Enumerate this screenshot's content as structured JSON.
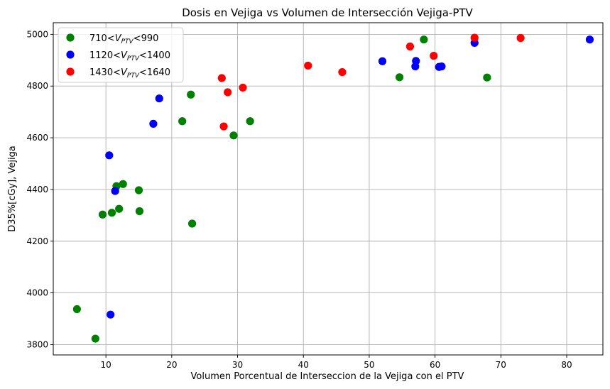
{
  "chart_data": {
    "type": "scatter",
    "title": "Dosis en Vejiga vs Volumen de Intersección Vejiga-PTV",
    "xlabel": "Volumen Porcentual de Interseccion de la Vejiga con el PTV",
    "ylabel": "D35%[cGy], Vejiga",
    "xlim": [
      2,
      85.5
    ],
    "ylim": [
      3760,
      5045
    ],
    "xticks": [
      10,
      20,
      30,
      40,
      50,
      60,
      70,
      80
    ],
    "yticks": [
      3800,
      4000,
      4200,
      4400,
      4600,
      4800,
      5000
    ],
    "grid": true,
    "legend_position": "top-left",
    "series": [
      {
        "label_prefix": "710<",
        "label_var": "V",
        "label_sub": "PTV",
        "label_suffix": "<990",
        "color": "#008000",
        "points": [
          [
            5.6,
            3937
          ],
          [
            8.4,
            3823
          ],
          [
            9.5,
            4303
          ],
          [
            10.9,
            4310
          ],
          [
            11.6,
            4413
          ],
          [
            12.0,
            4325
          ],
          [
            12.6,
            4421
          ],
          [
            15.0,
            4397
          ],
          [
            15.1,
            4316
          ],
          [
            21.6,
            4664
          ],
          [
            22.9,
            4767
          ],
          [
            23.1,
            4268
          ],
          [
            29.4,
            4609
          ],
          [
            31.9,
            4664
          ],
          [
            54.6,
            4834
          ],
          [
            58.3,
            4980
          ],
          [
            67.9,
            4833
          ]
        ]
      },
      {
        "label_prefix": "1120<",
        "label_var": "V",
        "label_sub": "PTV",
        "label_suffix": "<1400",
        "color": "#0000ff",
        "points": [
          [
            10.5,
            4532
          ],
          [
            10.7,
            3916
          ],
          [
            11.4,
            4394
          ],
          [
            17.2,
            4654
          ],
          [
            18.1,
            4752
          ],
          [
            52.0,
            4896
          ],
          [
            57.0,
            4876
          ],
          [
            57.1,
            4897
          ],
          [
            60.6,
            4874
          ],
          [
            61.0,
            4876
          ],
          [
            66.0,
            4967
          ],
          [
            83.5,
            4980
          ]
        ]
      },
      {
        "label_prefix": "1430<",
        "label_var": "V",
        "label_sub": "PTV",
        "label_suffix": "<1640",
        "color": "#ff0000",
        "points": [
          [
            27.6,
            4831
          ],
          [
            27.9,
            4644
          ],
          [
            28.5,
            4776
          ],
          [
            30.8,
            4794
          ],
          [
            40.7,
            4879
          ],
          [
            45.9,
            4854
          ],
          [
            56.2,
            4953
          ],
          [
            59.8,
            4917
          ],
          [
            66.0,
            4987
          ],
          [
            73.0,
            4986
          ]
        ]
      }
    ]
  }
}
